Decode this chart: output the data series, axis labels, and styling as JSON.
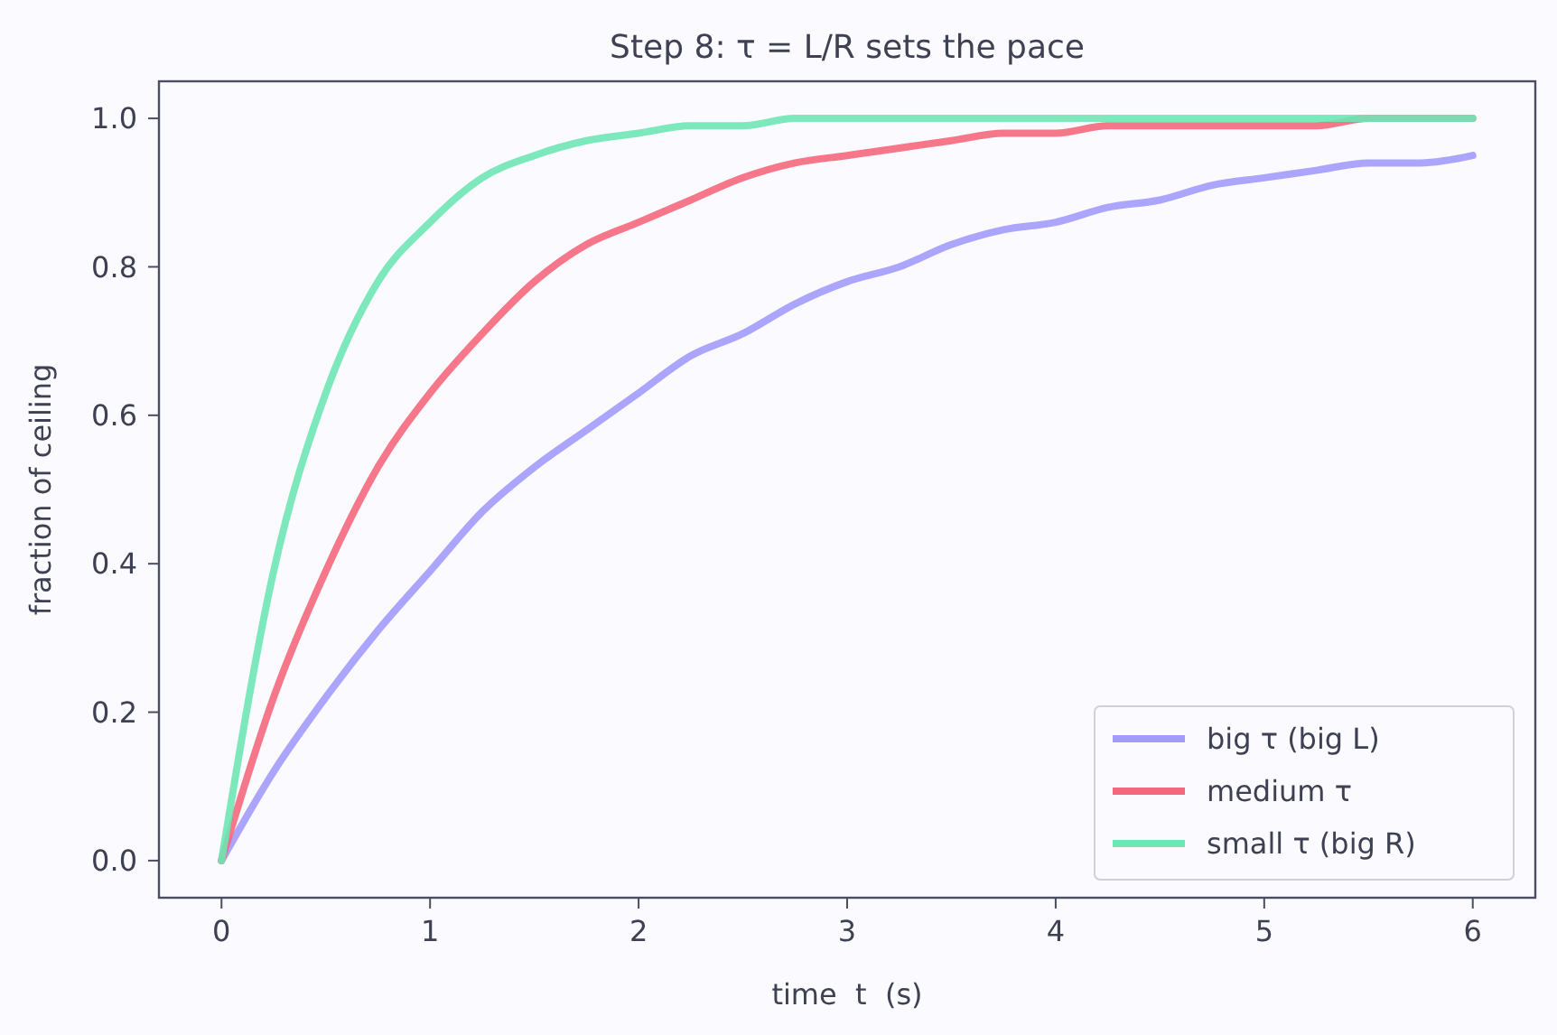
{
  "chart_data": {
    "type": "line",
    "title": "Step 8: τ = L/R sets the pace",
    "xlabel": "time  t  (s)",
    "ylabel": "fraction of ceiling",
    "x": [
      0,
      0.25,
      0.5,
      0.75,
      1,
      1.25,
      1.5,
      1.75,
      2,
      2.25,
      2.5,
      2.75,
      3,
      3.25,
      3.5,
      3.75,
      4,
      4.25,
      4.5,
      4.75,
      5,
      5.25,
      5.5,
      5.75,
      6
    ],
    "series": [
      {
        "name": "big τ (big L)",
        "color": "#a29bfe",
        "values": [
          0,
          0.12,
          0.22,
          0.31,
          0.39,
          0.47,
          0.53,
          0.58,
          0.63,
          0.68,
          0.71,
          0.75,
          0.78,
          0.8,
          0.83,
          0.85,
          0.86,
          0.88,
          0.89,
          0.91,
          0.92,
          0.93,
          0.94,
          0.94,
          0.95
        ]
      },
      {
        "name": "medium τ",
        "color": "#f5677d",
        "values": [
          0,
          0.22,
          0.39,
          0.53,
          0.63,
          0.71,
          0.78,
          0.83,
          0.86,
          0.89,
          0.92,
          0.94,
          0.95,
          0.96,
          0.97,
          0.98,
          0.98,
          0.99,
          0.99,
          0.99,
          0.99,
          0.99,
          1,
          1,
          1
        ]
      },
      {
        "name": "small τ (big R)",
        "color": "#6ee6b4",
        "values": [
          0,
          0.39,
          0.63,
          0.78,
          0.86,
          0.92,
          0.95,
          0.97,
          0.98,
          0.99,
          0.99,
          1,
          1,
          1,
          1,
          1,
          1,
          1,
          1,
          1,
          1,
          1,
          1,
          1,
          1
        ]
      }
    ],
    "xlim": [
      -0.3,
      6.3
    ],
    "ylim": [
      -0.05,
      1.05
    ],
    "xticks": [
      0,
      1,
      2,
      3,
      4,
      5,
      6
    ],
    "yticks": [
      {
        "value": 0,
        "label": "0.0"
      },
      0.2,
      0.4,
      0.6,
      0.8,
      {
        "value": 1,
        "label": "1.0"
      }
    ],
    "legend": "bottom right",
    "grid": false,
    "line_style": "solid",
    "marker": "none"
  }
}
